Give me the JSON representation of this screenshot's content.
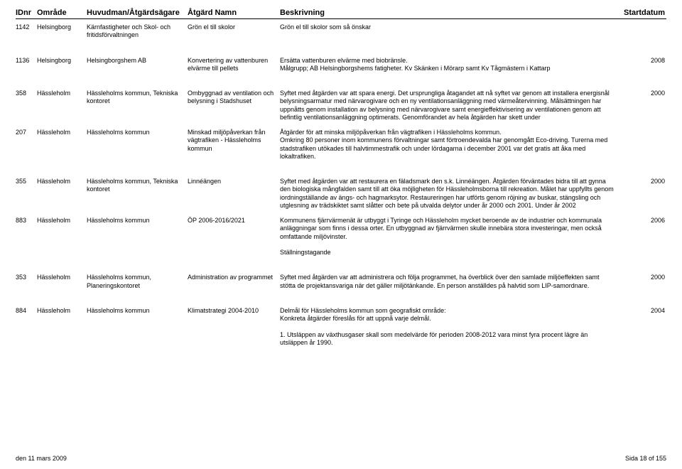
{
  "columns": {
    "id": "IDnr",
    "area": "Område",
    "owner": "Huvudman/Åtgärdsägare",
    "name": "Åtgärd Namn",
    "desc": "Beskrivning",
    "date": "Startdatum"
  },
  "rows": [
    {
      "id": "1142",
      "area": "Helsingborg",
      "owner": "Kärnfastigheter och Skol- och fritidsförvaltningen",
      "name": "Grön el till skolor",
      "desc": "Grön el till skolor som så önskar",
      "date": ""
    },
    {
      "id": "1136",
      "area": "Helsingborg",
      "owner": "Helsingborgshem AB",
      "name": "Konvertering av vattenburen elvärme till pellets",
      "desc": "Ersätta vattenburen elvärme med biobränsle.\nMålgrupp; AB Helsingborgshems fatigheter. Kv Skänken i Mörarp samt Kv Tågmästern i Kattarp",
      "date": "2008"
    },
    {
      "id": "358",
      "area": "Hässleholm",
      "owner": "Hässleholms kommun, Tekniska kontoret",
      "name": "Ombyggnad av ventilation och belysning i Stadshuset",
      "desc": "Syftet med åtgärden var att spara energi. Det ursprungliga åtagandet att nå syftet var genom att installera energisnål belysningsarmatur med närvarogivare och en ny ventilationsanläggning med värmeåtervinning. Målsättningen har uppnåtts genom installation av belysning med närvarogivare samt energieffektivisering av ventilationen genom att befintlig ventilationsanläggning optimerats. Genomförandet av hela åtgärden har skett under",
      "date": "2000"
    },
    {
      "id": "207",
      "area": "Hässleholm",
      "owner": "Hässleholms kommun",
      "name": "Minskad miljöpåverkan från vägtrafiken - Hässleholms kommun",
      "desc": "Åtgärder för att minska miljöpåverkan från vägtrafiken i Hässleholms kommun.\nOmkring 80 personer inom kommunens förvaltningar samt förtroendevalda har genomgått Eco-driving. Turerna med stadstrafiken utökades till halvtimmestrafik och under lördagarna i december 2001 var det gratis att åka med lokaltrafiken.",
      "date": ""
    },
    {
      "id": "355",
      "area": "Hässleholm",
      "owner": "Hässleholms kommun, Tekniska kontoret",
      "name": "Linnéängen",
      "desc": "Syftet med åtgärden var att restaurera en fäladsmark den s.k. Linnéängen. Åtgärden förväntades bidra till att gynna den biologiska mångfalden samt till att öka möjligheten för Hässleholmsborna till rekreation. Målet har uppfyllts genom iordningställande av ängs- och hagmarksytor. Restaureringen har utförts genom röjning av buskar, stängsling och utglesning av trädskiktet samt slåtter och bete på utvalda delytor under år 2000 och 2001. Under år 2002",
      "date": "2000"
    },
    {
      "id": "883",
      "area": "Hässleholm",
      "owner": "Hässleholms kommun",
      "name": "ÖP 2006-2016/2021",
      "desc": "Kommunens fjärrvärmenät är utbyggt i Tyringe och Hässleholm mycket beroende av de industrier och kommunala anläggningar som finns i dessa orter. En utbyggnad av fjärrvärmen skulle innebära stora investeringar, men också omfattande miljövinster.\n\nStällningstagande",
      "date": "2006"
    },
    {
      "id": "353",
      "area": "Hässleholm",
      "owner": "Hässleholms kommun, Planeringskontoret",
      "name": "Administration av programmet",
      "desc": "Syftet med åtgärden var att administrera och följa programmet, ha överblick över den samlade miljöeffekten samt stötta de projektansvariga när det gäller miljötänkande. En person anställdes på halvtid som LIP-samordnare.",
      "date": "2000"
    },
    {
      "id": "884",
      "area": "Hässleholm",
      "owner": "Hässleholms kommun",
      "name": "Klimatstrategi 2004-2010",
      "desc": "Delmål för Hässleholms kommun som geografiskt område:\nKonkreta åtgärder föreslås för att uppnå varje delmål.\n\n1. Utsläppen av växthusgaser skall som medelvärde för perioden 2008-2012 vara minst fyra procent lägre än utsläppen år 1990.",
      "date": "2004"
    }
  ],
  "footer": {
    "left": "den 11 mars 2009",
    "right": "Sida 18 of 155"
  },
  "gaps_after": [
    "1142",
    "1136",
    "207",
    "883",
    "353"
  ],
  "style": {
    "background": "#ffffff",
    "text_color": "#000000",
    "font_size_header": 11,
    "font_size_body": 9
  }
}
